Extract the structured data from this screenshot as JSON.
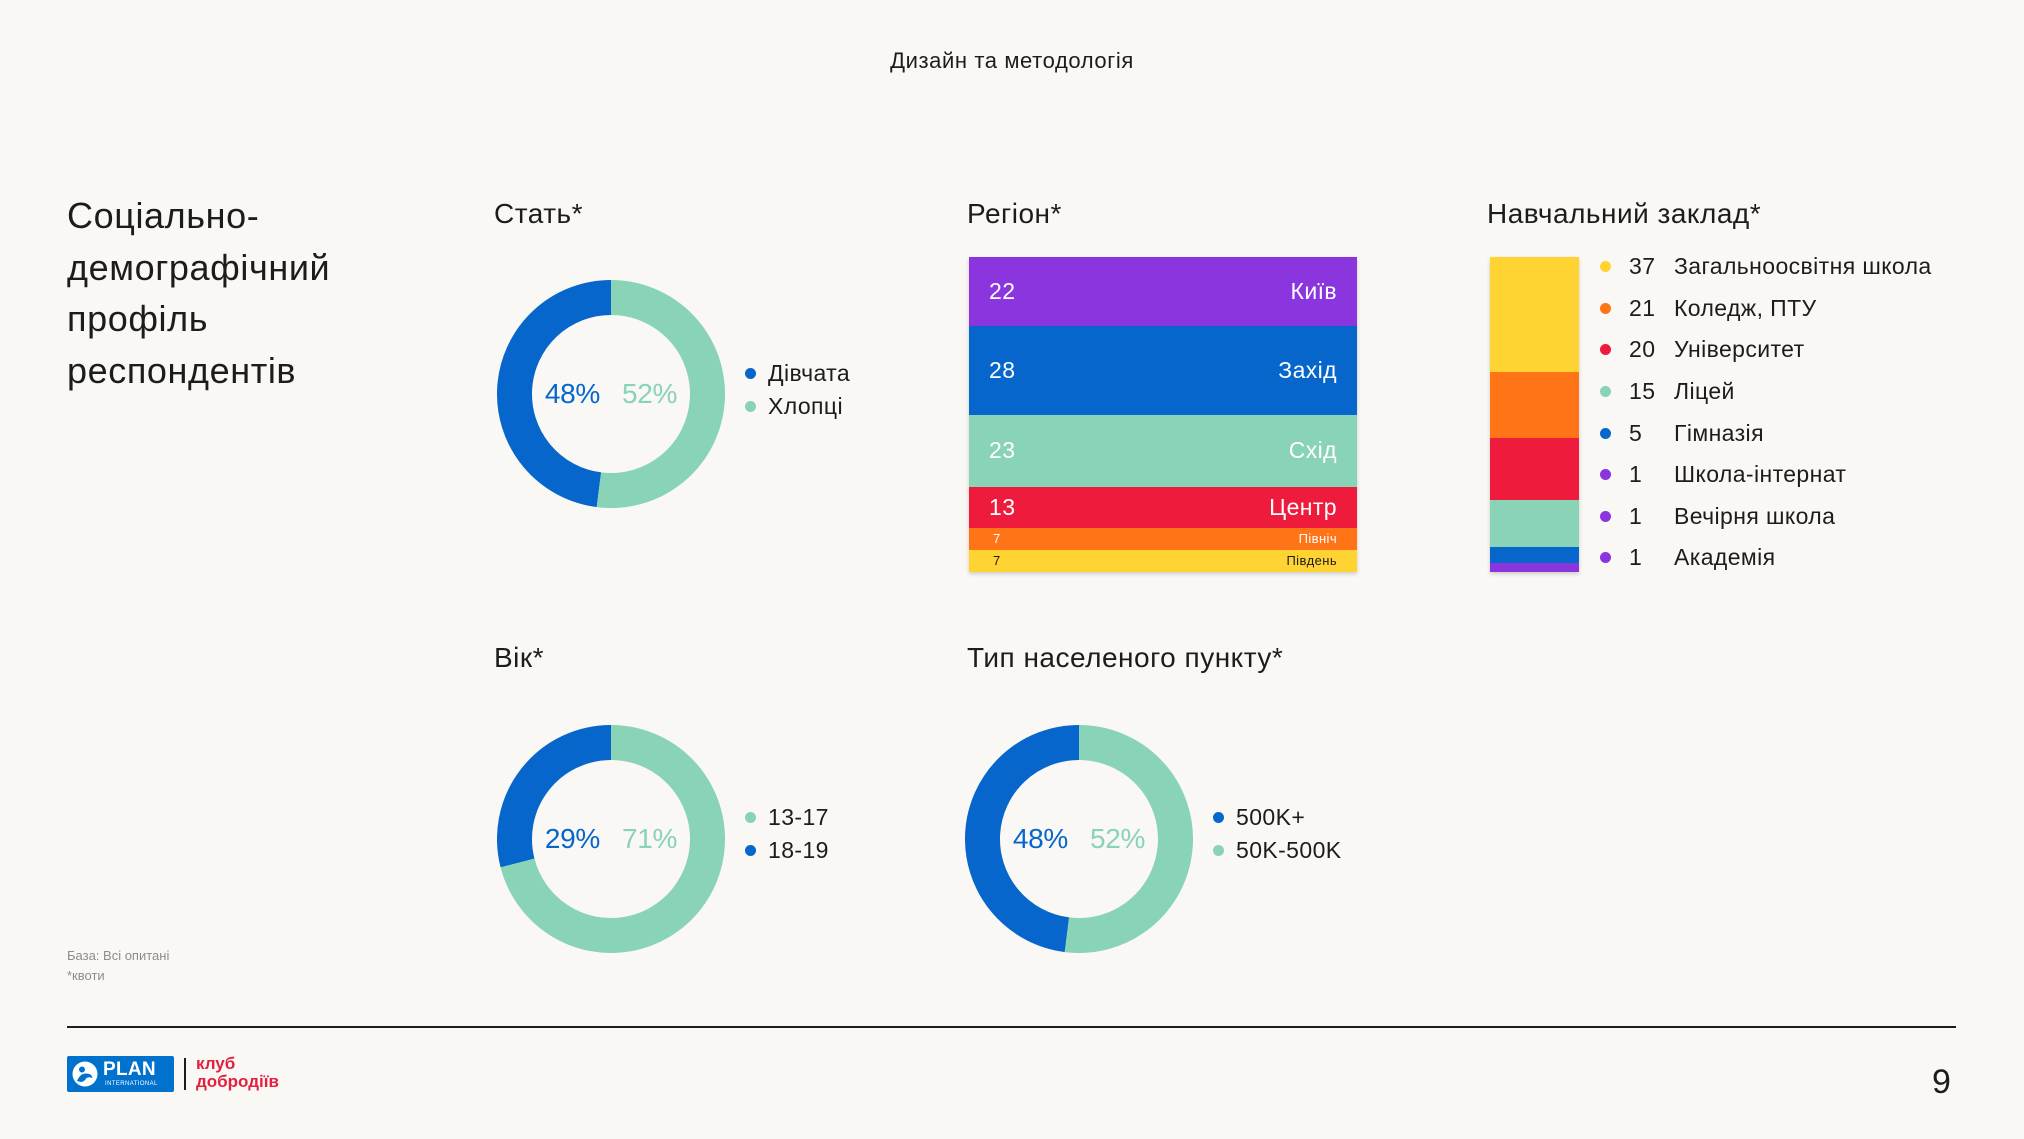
{
  "header": {
    "title": "Дизайн та методологія"
  },
  "section": {
    "title_lines": [
      "Соціально-",
      "демографічний",
      "профіль",
      "респондентів"
    ]
  },
  "footnote": {
    "base": "База: Всі опитані",
    "quota": "*квоти"
  },
  "footer": {
    "logo_plan": "PLAN",
    "logo_international": "INTERNATIONAL",
    "club_line1": "клуб",
    "club_line2": "добродіїв",
    "page_number": "9"
  },
  "colors": {
    "background": "#FAF8F4",
    "text": "#1C1C1C",
    "blue": "#0666CC",
    "green": "#89D3B6",
    "plan_blue": "#0072CE",
    "club_red": "#E3203F"
  },
  "chart_data": [
    {
      "type": "pie",
      "title": "Стать*",
      "unit": "%",
      "slices": [
        {
          "label": "Дівчата",
          "value": 48,
          "color": "#0666CC"
        },
        {
          "label": "Хлопці",
          "value": 52,
          "color": "#89D3B6"
        }
      ]
    },
    {
      "type": "bar",
      "stacked": true,
      "title": "Регіон*",
      "segments": [
        {
          "label": "Київ",
          "value": 22,
          "color": "#8A35DE",
          "text_color": "#FFFFFF"
        },
        {
          "label": "Захід",
          "value": 28,
          "color": "#0666CC",
          "text_color": "#FFFFFF"
        },
        {
          "label": "Схід",
          "value": 23,
          "color": "#89D3B6",
          "text_color": "#FFFFFF"
        },
        {
          "label": "Центр",
          "value": 13,
          "color": "#EE1B3D",
          "text_color": "#FFFFFF"
        },
        {
          "label": "Північ",
          "value": 7,
          "color": "#FF7417",
          "text_color": "#FFFFFF"
        },
        {
          "label": "Південь",
          "value": 7,
          "color": "#FFD332",
          "text_color": "#1C1C1C"
        }
      ]
    },
    {
      "type": "bar",
      "stacked": true,
      "title": "Навчальний заклад*",
      "segments": [
        {
          "label": "Загальноосвітня школа",
          "value": 37,
          "color": "#FFD332"
        },
        {
          "label": "Коледж, ПТУ",
          "value": 21,
          "color": "#FF7417"
        },
        {
          "label": "Університет",
          "value": 20,
          "color": "#EE1B3D"
        },
        {
          "label": "Ліцей",
          "value": 15,
          "color": "#89D3B6"
        },
        {
          "label": "Гімназія",
          "value": 5,
          "color": "#0666CC"
        },
        {
          "label": "Школа-інтернат",
          "value": 1,
          "color": "#8A35DE"
        },
        {
          "label": "Вечірня школа",
          "value": 1,
          "color": "#8A35DE"
        },
        {
          "label": "Академія",
          "value": 1,
          "color": "#8A35DE"
        }
      ]
    },
    {
      "type": "pie",
      "title": "Вік*",
      "unit": "%",
      "slices": [
        {
          "label": "13-17",
          "value": 71,
          "color": "#89D3B6"
        },
        {
          "label": "18-19",
          "value": 29,
          "color": "#0666CC"
        }
      ]
    },
    {
      "type": "pie",
      "title": "Тип населеного пункту*",
      "unit": "%",
      "slices": [
        {
          "label": "500K+",
          "value": 48,
          "color": "#0666CC"
        },
        {
          "label": "50K-500K",
          "value": 52,
          "color": "#89D3B6"
        }
      ]
    }
  ]
}
